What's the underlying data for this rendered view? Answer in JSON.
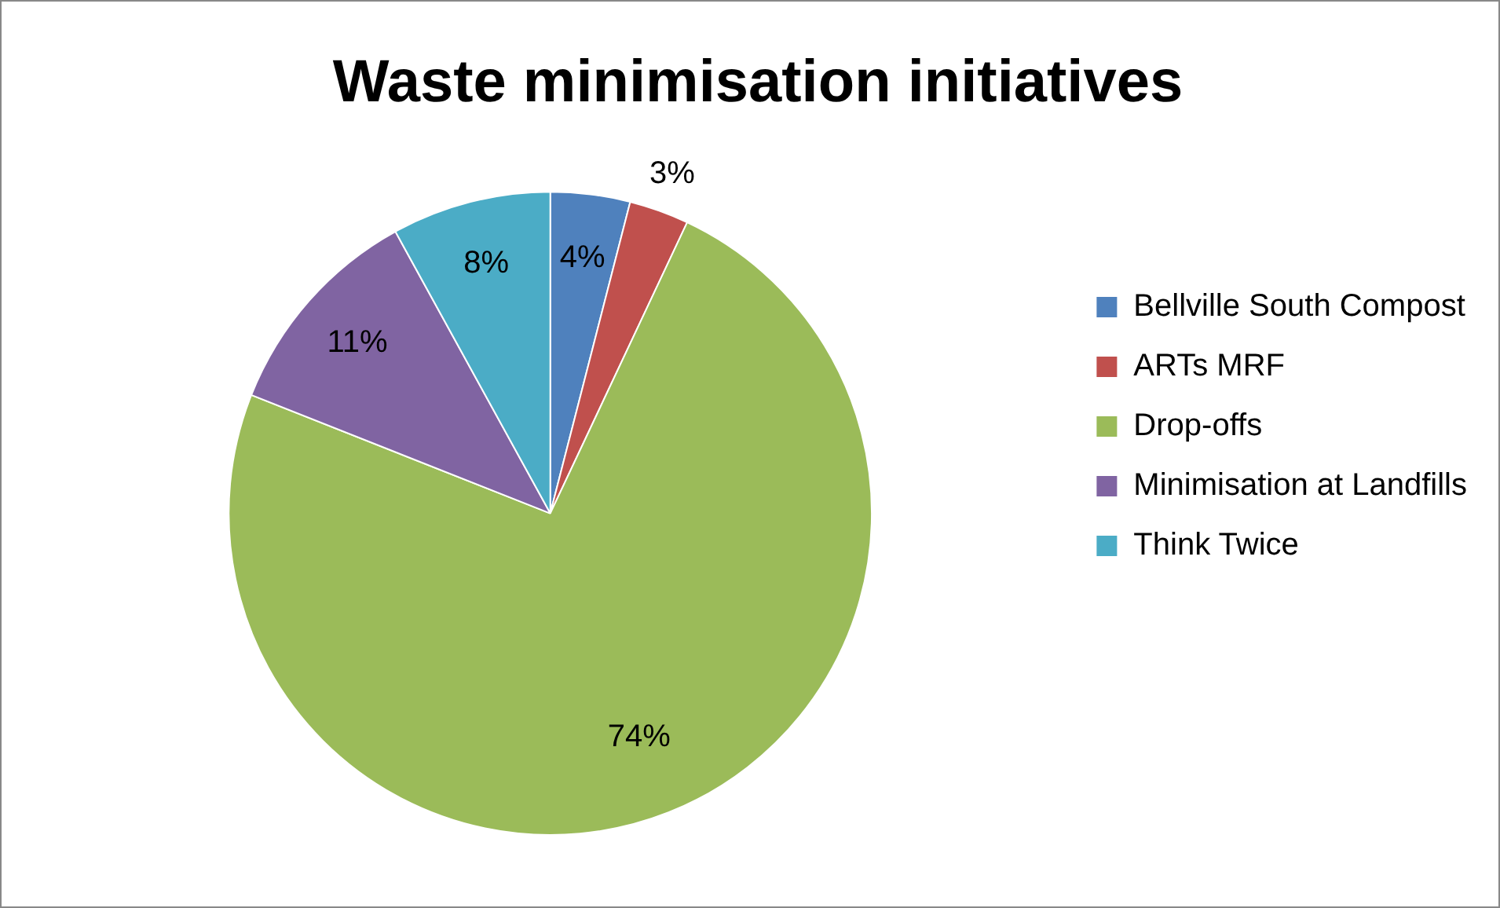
{
  "chart_data": {
    "type": "pie",
    "title": "Waste minimisation initiatives",
    "categories": [
      "Bellville South Compost",
      "ARTs MRF",
      "Drop-offs",
      "Minimisation at Landfills",
      "Think Twice"
    ],
    "values": [
      4,
      3,
      74,
      11,
      8
    ],
    "colors": [
      "#4f81bd",
      "#c0504d",
      "#9bbb59",
      "#8064a2",
      "#4bacc6"
    ],
    "value_labels": [
      "4%",
      "3%",
      "74%",
      "11%",
      "8%"
    ],
    "legend": "right"
  }
}
